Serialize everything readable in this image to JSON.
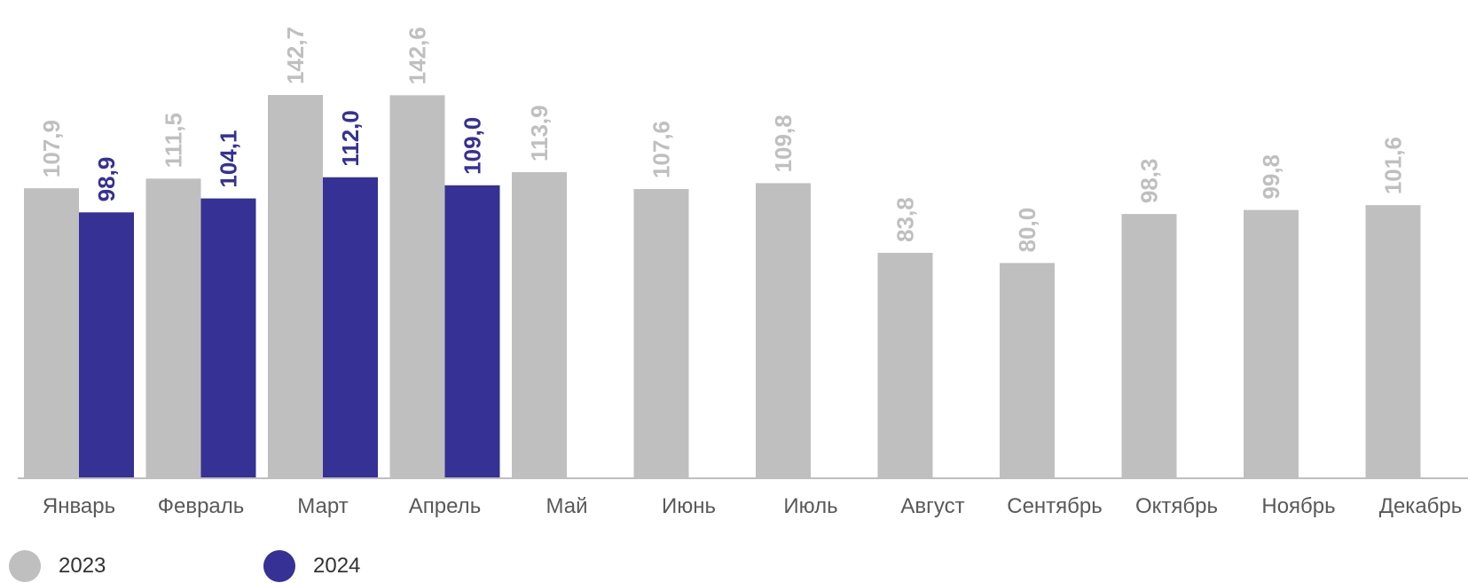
{
  "chart_data": {
    "type": "bar",
    "categories": [
      "Январь",
      "Февраль",
      "Март",
      "Апрель",
      "Май",
      "Июнь",
      "Июль",
      "Август",
      "Сентябрь",
      "Октябрь",
      "Ноябрь",
      "Декабрь"
    ],
    "series": [
      {
        "name": "2023",
        "color": "#bfbfbf",
        "label_color": "#bfbfbf",
        "values": [
          107.9,
          111.5,
          142.7,
          142.6,
          113.9,
          107.6,
          109.8,
          83.8,
          80.0,
          98.3,
          99.8,
          101.6
        ]
      },
      {
        "name": "2024",
        "color": "#353195",
        "label_color": "#353195",
        "values": [
          98.9,
          104.1,
          112.0,
          109.0,
          null,
          null,
          null,
          null,
          null,
          null,
          null,
          null
        ]
      }
    ],
    "data_labels": [
      [
        "107,9",
        "111,5",
        "142,7",
        "142,6",
        "113,9",
        "107,6",
        "109,8",
        "83,8",
        "80,0",
        "98,3",
        "99,8",
        "101,6"
      ],
      [
        "98,9",
        "104,1",
        "112,0",
        "109,0"
      ]
    ],
    "ylim": [
      0,
      150
    ],
    "grid": false,
    "legend_position": "bottom-left",
    "axis_color": "#bfbfbf",
    "tick_label_color": "#595959"
  }
}
